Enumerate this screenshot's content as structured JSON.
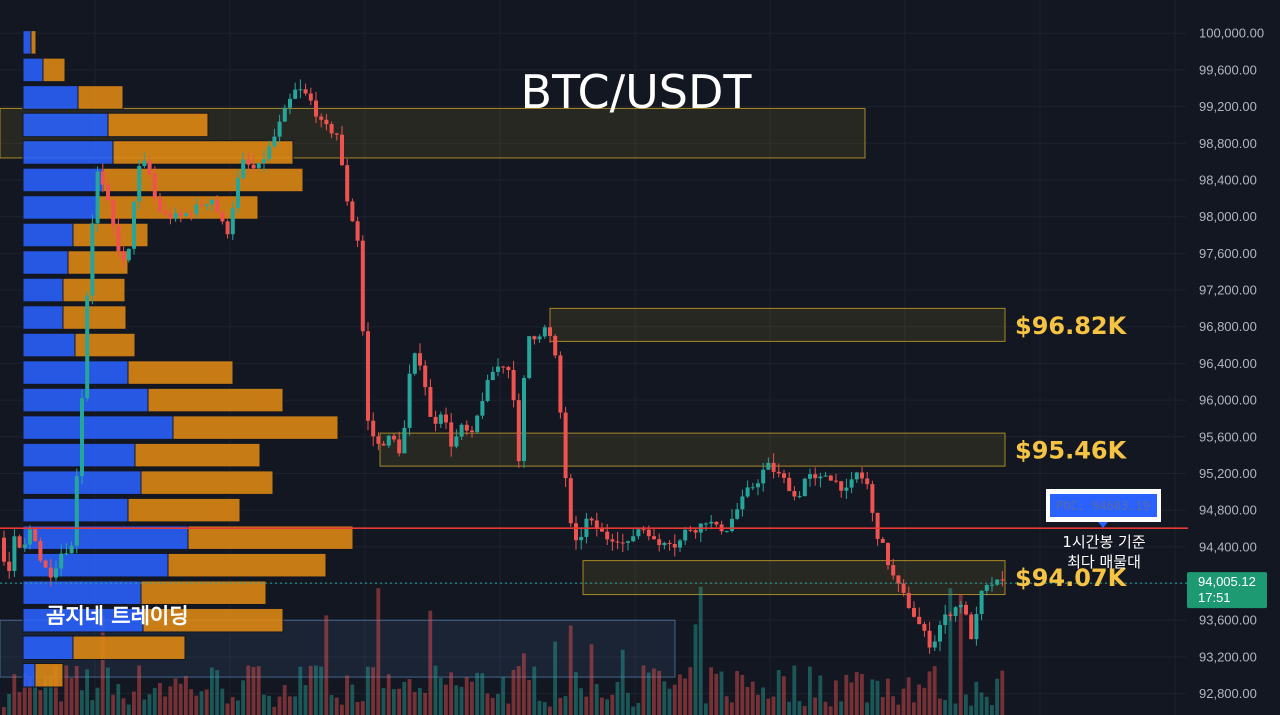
{
  "title": "BTC/USDT",
  "brand": "곰지네 트레이딩",
  "poc": {
    "label": "POC: 94603.19",
    "note_line1": "1시간봉 기준",
    "note_line2": "최다 매물대"
  },
  "current_price": {
    "value": "94,005.12",
    "time": "17:51"
  },
  "colors": {
    "up": "#26a69a",
    "down": "#ef5350",
    "vp_blue": "#2962ff",
    "vp_orange": "#e08a12",
    "poc_line": "#e53935",
    "zone": "#c9a227",
    "level_text": "#f6c343"
  },
  "chart_data": {
    "type": "candlestick",
    "title": "BTC/USDT",
    "ylim": [
      92600,
      100300
    ],
    "y_ticks": [
      "92,800.00",
      "93,200.00",
      "93,600.00",
      "94,000.00",
      "94,400.00",
      "94,800.00",
      "95,200.00",
      "95,600.00",
      "96,000.00",
      "96,400.00",
      "96,800.00",
      "97,200.00",
      "97,600.00",
      "98,000.00",
      "98,400.00",
      "98,800.00",
      "99,200.00",
      "99,600.00",
      "100,000.00"
    ],
    "levels": [
      {
        "label": "$96.82K",
        "value": 96820
      },
      {
        "label": "$95.46K",
        "value": 95460
      },
      {
        "label": "$94.07K",
        "value": 94070
      }
    ],
    "poc_value": 94603.19,
    "last_close": 94005.12,
    "price_path": [
      [
        0,
        94500
      ],
      [
        5,
        94300
      ],
      [
        12,
        94100
      ],
      [
        18,
        94500
      ],
      [
        25,
        94300
      ],
      [
        35,
        94650
      ],
      [
        45,
        94200
      ],
      [
        55,
        94100
      ],
      [
        65,
        94350
      ],
      [
        75,
        94400
      ],
      [
        85,
        96000
      ],
      [
        92,
        97500
      ],
      [
        100,
        98500
      ],
      [
        110,
        98200
      ],
      [
        120,
        97700
      ],
      [
        130,
        97400
      ],
      [
        140,
        98500
      ],
      [
        150,
        98600
      ],
      [
        160,
        98100
      ],
      [
        170,
        98000
      ],
      [
        185,
        98000
      ],
      [
        200,
        98100
      ],
      [
        215,
        98200
      ],
      [
        230,
        97800
      ],
      [
        245,
        98600
      ],
      [
        260,
        98500
      ],
      [
        275,
        98800
      ],
      [
        290,
        99200
      ],
      [
        300,
        99400
      ],
      [
        312,
        99300
      ],
      [
        325,
        99000
      ],
      [
        340,
        98900
      ],
      [
        350,
        98200
      ],
      [
        362,
        97700
      ],
      [
        370,
        95800
      ],
      [
        380,
        95500
      ],
      [
        395,
        95600
      ],
      [
        405,
        95400
      ],
      [
        415,
        96500
      ],
      [
        425,
        96400
      ],
      [
        435,
        95700
      ],
      [
        445,
        95900
      ],
      [
        455,
        95500
      ],
      [
        465,
        95700
      ],
      [
        475,
        95600
      ],
      [
        485,
        96000
      ],
      [
        495,
        96300
      ],
      [
        505,
        96400
      ],
      [
        515,
        96300
      ],
      [
        522,
        95300
      ],
      [
        530,
        96700
      ],
      [
        540,
        96700
      ],
      [
        550,
        96800
      ],
      [
        558,
        96500
      ],
      [
        565,
        95700
      ],
      [
        572,
        94700
      ],
      [
        580,
        94400
      ],
      [
        590,
        94700
      ],
      [
        600,
        94600
      ],
      [
        610,
        94500
      ],
      [
        620,
        94500
      ],
      [
        630,
        94400
      ],
      [
        640,
        94600
      ],
      [
        650,
        94600
      ],
      [
        660,
        94400
      ],
      [
        670,
        94500
      ],
      [
        680,
        94400
      ],
      [
        690,
        94600
      ],
      [
        700,
        94600
      ],
      [
        710,
        94700
      ],
      [
        720,
        94600
      ],
      [
        730,
        94600
      ],
      [
        740,
        94800
      ],
      [
        750,
        95000
      ],
      [
        760,
        95100
      ],
      [
        770,
        95300
      ],
      [
        780,
        95200
      ],
      [
        790,
        95100
      ],
      [
        800,
        94900
      ],
      [
        810,
        95200
      ],
      [
        820,
        95100
      ],
      [
        830,
        95200
      ],
      [
        840,
        95100
      ],
      [
        850,
        95000
      ],
      [
        860,
        95200
      ],
      [
        870,
        95100
      ],
      [
        878,
        94600
      ],
      [
        886,
        94400
      ],
      [
        895,
        94100
      ],
      [
        905,
        93900
      ],
      [
        915,
        93700
      ],
      [
        925,
        93500
      ],
      [
        935,
        93300
      ],
      [
        945,
        93600
      ],
      [
        955,
        93700
      ],
      [
        965,
        93800
      ],
      [
        975,
        93400
      ],
      [
        985,
        93900
      ],
      [
        995,
        94000
      ],
      [
        1005,
        94005
      ]
    ],
    "volume_profile": [
      {
        "price": 99900,
        "buy": 8,
        "sell": 5
      },
      {
        "price": 99600,
        "buy": 20,
        "sell": 22
      },
      {
        "price": 99300,
        "buy": 55,
        "sell": 45
      },
      {
        "price": 99000,
        "buy": 85,
        "sell": 100
      },
      {
        "price": 98700,
        "buy": 90,
        "sell": 180
      },
      {
        "price": 98400,
        "buy": 80,
        "sell": 200
      },
      {
        "price": 98100,
        "buy": 75,
        "sell": 160
      },
      {
        "price": 97800,
        "buy": 50,
        "sell": 75
      },
      {
        "price": 97500,
        "buy": 45,
        "sell": 60
      },
      {
        "price": 97200,
        "buy": 40,
        "sell": 62
      },
      {
        "price": 96900,
        "buy": 40,
        "sell": 63
      },
      {
        "price": 96600,
        "buy": 52,
        "sell": 60
      },
      {
        "price": 96300,
        "buy": 105,
        "sell": 105
      },
      {
        "price": 96000,
        "buy": 125,
        "sell": 135
      },
      {
        "price": 95700,
        "buy": 150,
        "sell": 165
      },
      {
        "price": 95400,
        "buy": 112,
        "sell": 125
      },
      {
        "price": 95100,
        "buy": 118,
        "sell": 132
      },
      {
        "price": 94800,
        "buy": 105,
        "sell": 112
      },
      {
        "price": 94500,
        "buy": 165,
        "sell": 165
      },
      {
        "price": 94200,
        "buy": 145,
        "sell": 158
      },
      {
        "price": 93900,
        "buy": 118,
        "sell": 125
      },
      {
        "price": 93600,
        "buy": 120,
        "sell": 140
      },
      {
        "price": 93300,
        "buy": 50,
        "sell": 112
      },
      {
        "price": 93000,
        "buy": 12,
        "sell": 28
      }
    ],
    "zones": [
      {
        "from_x": 0,
        "to_x": 865,
        "high": 99180,
        "low": 98640,
        "color": "gold"
      },
      {
        "from_x": 550,
        "to_x": 1005,
        "high": 97000,
        "low": 96640,
        "color": "gold"
      },
      {
        "from_x": 380,
        "to_x": 1005,
        "high": 95640,
        "low": 95280,
        "color": "gold"
      },
      {
        "from_x": 583,
        "to_x": 1005,
        "high": 94250,
        "low": 93880,
        "color": "gold"
      },
      {
        "from_x": 0,
        "to_x": 675,
        "high": 93600,
        "low": 92980,
        "color": "blue"
      }
    ]
  }
}
